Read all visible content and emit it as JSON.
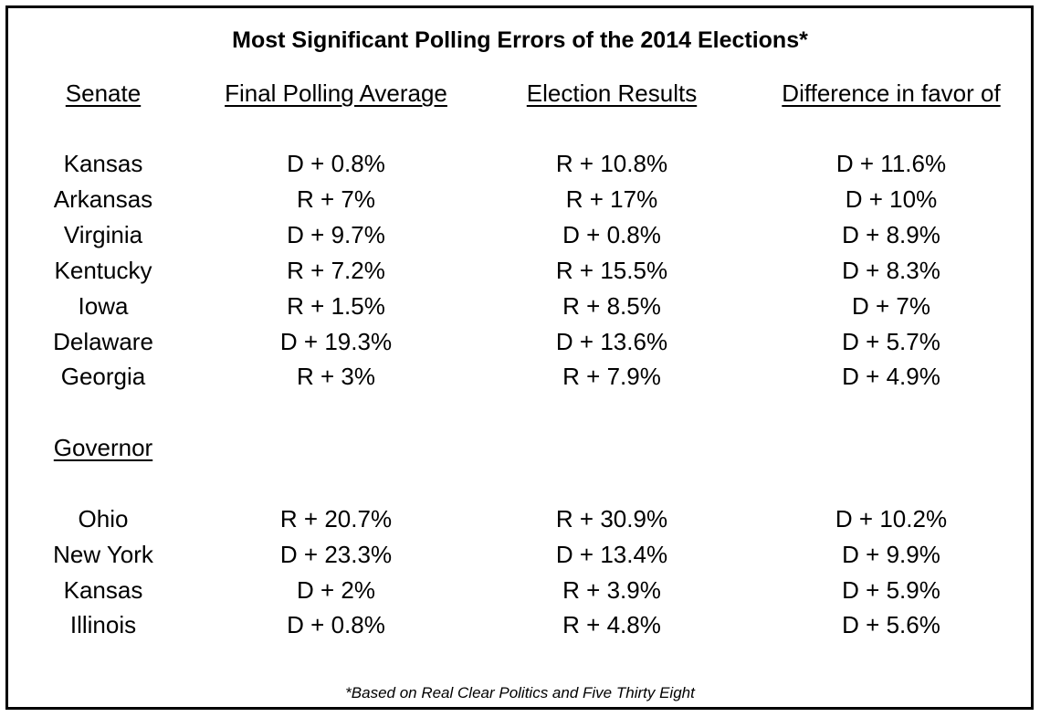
{
  "chart_data": {
    "type": "table",
    "title": "Most Significant Polling Errors of the 2014 Elections*",
    "columns": [
      "Senate",
      "Final Polling Average",
      "Election Results",
      "Difference in favor of"
    ],
    "sections": [
      {
        "name": "Senate",
        "rows": [
          [
            "Kansas",
            "D + 0.8%",
            "R + 10.8%",
            "D + 11.6%"
          ],
          [
            "Arkansas",
            "R + 7%",
            "R + 17%",
            "D + 10%"
          ],
          [
            "Virginia",
            "D + 9.7%",
            "D + 0.8%",
            "D + 8.9%"
          ],
          [
            "Kentucky",
            "R + 7.2%",
            "R + 15.5%",
            "D + 8.3%"
          ],
          [
            "Iowa",
            "R + 1.5%",
            "R + 8.5%",
            "D + 7%"
          ],
          [
            "Delaware",
            "D + 19.3%",
            "D + 13.6%",
            "D + 5.7%"
          ],
          [
            "Georgia",
            "R + 3%",
            "R + 7.9%",
            "D + 4.9%"
          ]
        ]
      },
      {
        "name": "Governor",
        "rows": [
          [
            "Ohio",
            "R + 20.7%",
            "R + 30.9%",
            "D + 10.2%"
          ],
          [
            "New York",
            "D + 23.3%",
            "D + 13.4%",
            "D + 9.9%"
          ],
          [
            "Kansas",
            "D + 2%",
            "R + 3.9%",
            "D + 5.9%"
          ],
          [
            "Illinois",
            "D + 0.8%",
            "R + 4.8%",
            "D + 5.6%"
          ]
        ]
      }
    ],
    "footnote": "*Based on Real Clear Politics and Five Thirty Eight"
  }
}
